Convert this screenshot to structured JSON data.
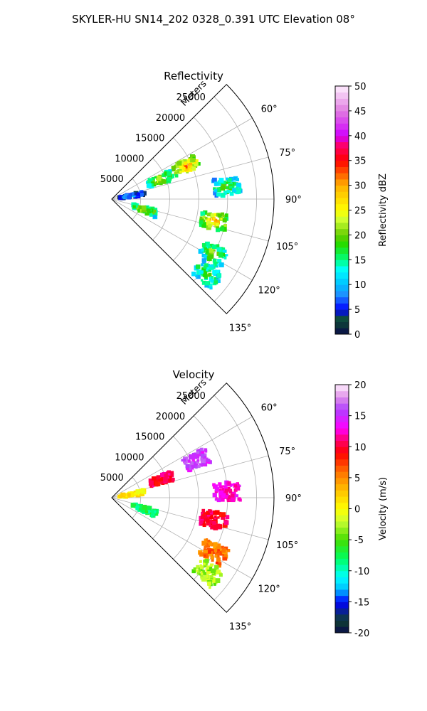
{
  "suptitle": "SKYLER-HU  SN14_202  0328_0.391 UTC Elevation 08°",
  "chart_data": [
    {
      "type": "heatmap",
      "projection": "polar-sector",
      "title": "Reflectivity",
      "range_label": "Meters",
      "range_ticks": [
        "5000",
        "10000",
        "15000",
        "20000",
        "25000"
      ],
      "azimuth_ticks": [
        "60°",
        "75°",
        "90°",
        "105°",
        "120°",
        "135°"
      ],
      "azimuth_range_deg": [
        45,
        135
      ],
      "max_range_m": 28000,
      "colorbar": {
        "label": "Reflectivity dBZ",
        "ticks": [
          "0",
          "5",
          "10",
          "15",
          "20",
          "25",
          "30",
          "35",
          "40",
          "45",
          "50"
        ],
        "range": [
          0,
          50
        ],
        "colormap": "NWS-reflectivity-style"
      },
      "echo_regions": [
        {
          "azimuth_deg": 66,
          "range_m": 14000,
          "dbz_peak": 35
        },
        {
          "azimuth_deg": 68,
          "range_m": 9000,
          "dbz_peak": 28
        },
        {
          "azimuth_deg": 80,
          "range_m": 3500,
          "dbz_peak": 12
        },
        {
          "azimuth_deg": 108,
          "range_m": 6000,
          "dbz_peak": 27
        },
        {
          "azimuth_deg": 102,
          "range_m": 18000,
          "dbz_peak": 33
        },
        {
          "azimuth_deg": 118,
          "range_m": 20000,
          "dbz_peak": 25
        },
        {
          "azimuth_deg": 128,
          "range_m": 21000,
          "dbz_peak": 22
        },
        {
          "azimuth_deg": 84,
          "range_m": 20000,
          "dbz_peak": 22
        }
      ]
    },
    {
      "type": "heatmap",
      "projection": "polar-sector",
      "title": "Velocity",
      "range_label": "Meters",
      "range_ticks": [
        "5000",
        "10000",
        "15000",
        "20000",
        "25000"
      ],
      "azimuth_ticks": [
        "60°",
        "75°",
        "90°",
        "105°",
        "120°",
        "135°"
      ],
      "azimuth_range_deg": [
        45,
        135
      ],
      "max_range_m": 28000,
      "colorbar": {
        "label": "Velocity (m/s)",
        "ticks": [
          "-20",
          "-15",
          "-10",
          "-5",
          "0",
          "5",
          "10",
          "15",
          "20"
        ],
        "range": [
          -20,
          20
        ],
        "colormap": "diverging-velocity"
      },
      "echo_regions": [
        {
          "azimuth_deg": 66,
          "range_m": 16000,
          "velocity_ms": 15
        },
        {
          "azimuth_deg": 70,
          "range_m": 9000,
          "velocity_ms": 10
        },
        {
          "azimuth_deg": 80,
          "range_m": 3500,
          "velocity_ms": 1
        },
        {
          "azimuth_deg": 110,
          "range_m": 6000,
          "velocity_ms": -8
        },
        {
          "azimuth_deg": 102,
          "range_m": 18000,
          "velocity_ms": 10
        },
        {
          "azimuth_deg": 118,
          "range_m": 20000,
          "velocity_ms": 6
        },
        {
          "azimuth_deg": 128,
          "range_m": 21000,
          "velocity_ms": -3
        },
        {
          "azimuth_deg": 87,
          "range_m": 20000,
          "velocity_ms": 13
        }
      ]
    }
  ]
}
